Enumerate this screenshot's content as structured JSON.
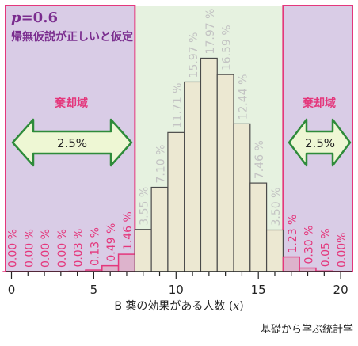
{
  "chart_data": {
    "type": "bar",
    "title": "p=0.6",
    "subtitle": "帰無仮説が正しいと仮定",
    "xlabel": "B 薬の効果がある人数 (x)",
    "xlabel_parts": {
      "text": "B 薬の効果がある人数 (",
      "var": "x",
      "close": ")"
    },
    "title_parts": {
      "var": "p",
      "rest": "=0.6"
    },
    "x": [
      0,
      1,
      2,
      3,
      4,
      5,
      6,
      7,
      8,
      9,
      10,
      11,
      12,
      13,
      14,
      15,
      16,
      17,
      18,
      19,
      20
    ],
    "values": [
      0.0,
      0.0,
      0.0,
      0.0,
      0.03,
      0.13,
      0.49,
      1.46,
      3.55,
      7.1,
      11.71,
      15.97,
      17.97,
      16.59,
      12.44,
      7.46,
      3.5,
      1.23,
      0.3,
      0.05,
      0.0
    ],
    "labels": [
      "0.00 %",
      "0.00 %",
      "0.00 %",
      "0.00 %",
      "0.03 %",
      "0.13 %",
      "0.49 %",
      "1.46 %",
      "3.55 %",
      "7.10 %",
      "11.71 %",
      "15.97 %",
      "17.97 %",
      "16.59 %",
      "12.44 %",
      "7.46 %",
      "3.50 %",
      "1.23 %",
      "0.30 %",
      "0.05 %",
      "0.00%"
    ],
    "xticks": [
      0,
      5,
      10,
      15,
      20
    ],
    "xlim": [
      0,
      20
    ],
    "ylim": [
      0,
      20
    ],
    "rejection_low_max": 7,
    "rejection_high_min": 17,
    "rejection_label": "棄却域",
    "rejection_percent": "2.5%",
    "colors": {
      "rejection_fill": "#d9cce6",
      "rejection_border": "#e4377c",
      "acceptance_fill": "#e6f2e0",
      "bar_fill": "#ece8d2",
      "bar_stroke": "#4a4a4a",
      "rejection_bar_fill": "#ddb3cc",
      "rejection_bar_stroke": "#e4377c",
      "label_accept": "#c3c3c3",
      "label_reject": "#e4377c",
      "title": "#7a2c8e",
      "arrow_fill": "#eef7d4",
      "arrow_stroke": "#2e8b3a"
    }
  },
  "footer": "基礎から学ぶ統計学"
}
